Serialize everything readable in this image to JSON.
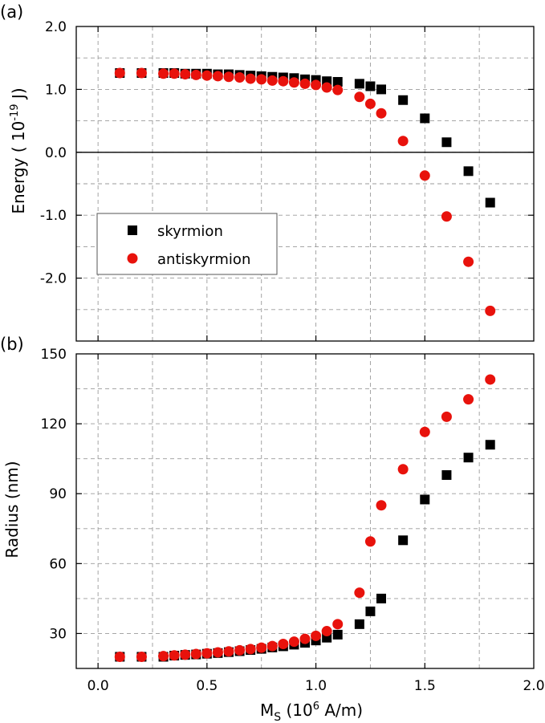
{
  "chart_data": [
    {
      "type": "scatter",
      "panel_label": "(a)",
      "ylabel_parts": {
        "main": "Energy ( 10",
        "sup": "-19",
        "tail": " J)"
      },
      "xlim": [
        -0.1,
        2.0
      ],
      "ylim": [
        -3.0,
        2.0
      ],
      "xticks": [
        0.0,
        0.5,
        1.0,
        1.5,
        2.0
      ],
      "yticks": [
        2.0,
        1.0,
        0.0,
        -1.0,
        -2.0
      ],
      "ytick_labels": [
        "2.0",
        "1.0",
        "0.0",
        "-1.0",
        "-2.0"
      ],
      "grid": true,
      "zero_line": true,
      "legend_position": "center-left",
      "series": [
        {
          "name": "skyrmion",
          "marker": "square",
          "color": "#000000",
          "x": [
            0.1,
            0.2,
            0.3,
            0.35,
            0.4,
            0.45,
            0.5,
            0.55,
            0.6,
            0.65,
            0.7,
            0.75,
            0.8,
            0.85,
            0.9,
            0.95,
            1.0,
            1.05,
            1.1,
            1.2,
            1.25,
            1.3,
            1.4,
            1.5,
            1.6,
            1.7,
            1.8
          ],
          "y": [
            1.26,
            1.26,
            1.26,
            1.26,
            1.25,
            1.25,
            1.25,
            1.24,
            1.24,
            1.23,
            1.22,
            1.21,
            1.2,
            1.19,
            1.18,
            1.16,
            1.15,
            1.13,
            1.12,
            1.09,
            1.05,
            1.0,
            0.83,
            0.54,
            0.16,
            -0.3,
            -0.8
          ]
        },
        {
          "name": "antiskyrmion",
          "marker": "circle",
          "color": "#e8120c",
          "x": [
            0.1,
            0.2,
            0.3,
            0.35,
            0.4,
            0.45,
            0.5,
            0.55,
            0.6,
            0.65,
            0.7,
            0.75,
            0.8,
            0.85,
            0.9,
            0.95,
            1.0,
            1.05,
            1.1,
            1.2,
            1.25,
            1.3,
            1.4,
            1.5,
            1.6,
            1.7,
            1.8
          ],
          "y": [
            1.26,
            1.26,
            1.25,
            1.25,
            1.24,
            1.23,
            1.22,
            1.21,
            1.2,
            1.19,
            1.17,
            1.16,
            1.14,
            1.13,
            1.11,
            1.09,
            1.07,
            1.03,
            0.99,
            0.88,
            0.77,
            0.62,
            0.18,
            -0.37,
            -1.02,
            -1.74,
            -2.52
          ]
        }
      ]
    },
    {
      "type": "scatter",
      "panel_label": "(b)",
      "ylabel": "Radius (nm)",
      "xlabel_parts": {
        "main": "M",
        "sub": "S",
        "mid": " (10",
        "sup": "6",
        "tail": " A/m)"
      },
      "xlim": [
        -0.1,
        2.0
      ],
      "ylim": [
        15,
        150
      ],
      "xticks": [
        0.0,
        0.5,
        1.0,
        1.5,
        2.0
      ],
      "xtick_labels": [
        "0.0",
        "0.5",
        "1.0",
        "1.5",
        "2.0"
      ],
      "yticks": [
        150,
        120,
        90,
        60,
        30
      ],
      "ytick_labels": [
        "150",
        "120",
        "90",
        "60",
        "30"
      ],
      "grid": true,
      "series": [
        {
          "name": "skyrmion",
          "marker": "square",
          "color": "#000000",
          "x": [
            0.1,
            0.2,
            0.3,
            0.35,
            0.4,
            0.45,
            0.5,
            0.55,
            0.6,
            0.65,
            0.7,
            0.75,
            0.8,
            0.85,
            0.9,
            0.95,
            1.0,
            1.05,
            1.1,
            1.2,
            1.25,
            1.3,
            1.4,
            1.5,
            1.6,
            1.7,
            1.8
          ],
          "y": [
            20,
            20,
            20,
            20.5,
            20.8,
            21,
            21.3,
            21.6,
            22,
            22.4,
            22.9,
            23.4,
            24,
            24.5,
            25.2,
            26,
            27,
            28.2,
            29.5,
            34,
            39.5,
            45,
            70,
            87.5,
            98,
            105.5,
            111
          ]
        },
        {
          "name": "antiskyrmion",
          "marker": "circle",
          "color": "#e8120c",
          "x": [
            0.1,
            0.2,
            0.3,
            0.35,
            0.4,
            0.45,
            0.5,
            0.55,
            0.6,
            0.65,
            0.7,
            0.75,
            0.8,
            0.85,
            0.9,
            0.95,
            1.0,
            1.05,
            1.1,
            1.2,
            1.25,
            1.3,
            1.4,
            1.5,
            1.6,
            1.7,
            1.8
          ],
          "y": [
            20,
            20,
            20.3,
            20.6,
            20.9,
            21.2,
            21.5,
            21.9,
            22.3,
            22.8,
            23.3,
            23.9,
            24.6,
            25.5,
            26.5,
            27.7,
            29,
            31,
            34,
            47.5,
            69.5,
            85,
            100.5,
            116.5,
            123,
            130.5,
            139
          ]
        }
      ]
    }
  ]
}
